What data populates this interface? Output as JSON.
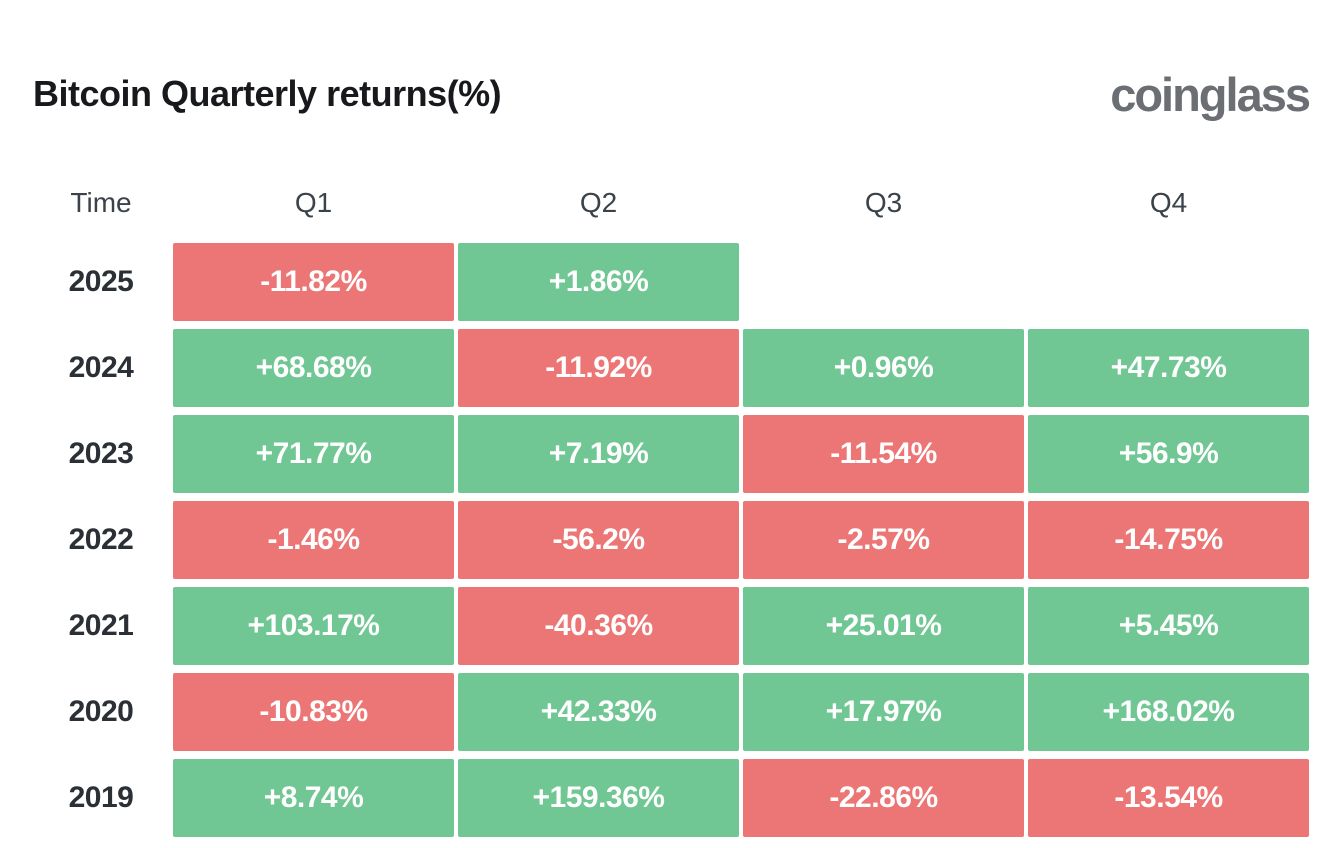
{
  "header": {
    "title": "Bitcoin Quarterly returns(%)",
    "logo": "coinglass"
  },
  "colors": {
    "positive": "#70c794",
    "negative": "#ec7575",
    "title_text": "#17191c",
    "logo_text": "#6b6f74",
    "header_text": "#3b4249",
    "year_text": "#2b3036",
    "cell_text": "#ffffff",
    "background": "#ffffff"
  },
  "table": {
    "columns": [
      "Time",
      "Q1",
      "Q2",
      "Q3",
      "Q4"
    ],
    "rows": [
      {
        "year": "2025",
        "values": [
          "-11.82%",
          "+1.86%",
          null,
          null
        ]
      },
      {
        "year": "2024",
        "values": [
          "+68.68%",
          "-11.92%",
          "+0.96%",
          "+47.73%"
        ]
      },
      {
        "year": "2023",
        "values": [
          "+71.77%",
          "+7.19%",
          "-11.54%",
          "+56.9%"
        ]
      },
      {
        "year": "2022",
        "values": [
          "-1.46%",
          "-56.2%",
          "-2.57%",
          "-14.75%"
        ]
      },
      {
        "year": "2021",
        "values": [
          "+103.17%",
          "-40.36%",
          "+25.01%",
          "+5.45%"
        ]
      },
      {
        "year": "2020",
        "values": [
          "-10.83%",
          "+42.33%",
          "+17.97%",
          "+168.02%"
        ]
      },
      {
        "year": "2019",
        "values": [
          "+8.74%",
          "+159.36%",
          "-22.86%",
          "-13.54%"
        ]
      }
    ]
  },
  "chart_data": {
    "type": "heatmap",
    "title": "Bitcoin Quarterly returns(%)",
    "categories": [
      "Q1",
      "Q2",
      "Q3",
      "Q4"
    ],
    "rows": [
      "2025",
      "2024",
      "2023",
      "2022",
      "2021",
      "2020",
      "2019"
    ],
    "values": [
      [
        -11.82,
        1.86,
        null,
        null
      ],
      [
        68.68,
        -11.92,
        0.96,
        47.73
      ],
      [
        71.77,
        7.19,
        -11.54,
        56.9
      ],
      [
        -1.46,
        -56.2,
        -2.57,
        -14.75
      ],
      [
        103.17,
        -40.36,
        25.01,
        5.45
      ],
      [
        -10.83,
        42.33,
        17.97,
        168.02
      ],
      [
        8.74,
        159.36,
        -22.86,
        -13.54
      ]
    ],
    "unit": "%",
    "color_rule": "green if positive, red if negative",
    "legend": "none",
    "grid": "off"
  }
}
